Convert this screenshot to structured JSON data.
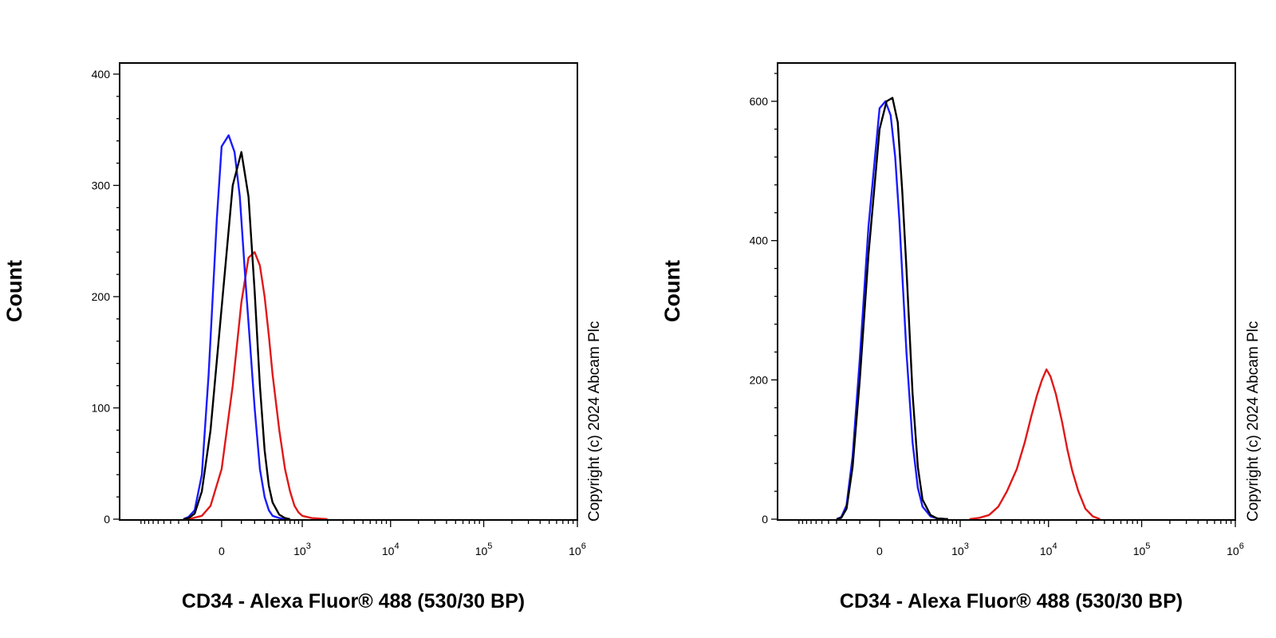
{
  "chart_data": [
    {
      "type": "line",
      "title": "",
      "xlabel": "CD34 - Alexa Fluor® 488 (530/30 BP)",
      "ylabel": "Count",
      "annotation": "Copyright (c) 2024 Abcam Plc",
      "xscale": "biexponential",
      "ylim": [
        0,
        410
      ],
      "grid": false,
      "yticks": [
        0,
        100,
        200,
        300,
        400
      ],
      "yticks_labels": [
        "0",
        "100",
        "200",
        "300",
        "400"
      ],
      "xticks": [
        {
          "value": 0,
          "base": "0",
          "exp": ""
        },
        {
          "value": 1000,
          "base": "10",
          "exp": "3"
        },
        {
          "value": 10000,
          "base": "10",
          "exp": "4"
        },
        {
          "value": 100000,
          "base": "10",
          "exp": "5"
        },
        {
          "value": 1000000,
          "base": "10",
          "exp": "6"
        }
      ],
      "colors": {
        "blue": "#1a1aff",
        "black": "#000000",
        "red": "#e01818"
      },
      "series": [
        {
          "color": "blue",
          "x": [
            -250,
            -200,
            -150,
            -100,
            -60,
            -20,
            0,
            30,
            60,
            90,
            130,
            160,
            200,
            250,
            300,
            350,
            400,
            500,
            600,
            700
          ],
          "y": [
            0,
            2,
            8,
            40,
            130,
            270,
            335,
            345,
            330,
            290,
            210,
            160,
            100,
            45,
            20,
            8,
            3,
            1,
            0,
            0
          ]
        },
        {
          "color": "black",
          "x": [
            -250,
            -200,
            -150,
            -100,
            -50,
            0,
            50,
            100,
            150,
            200,
            250,
            300,
            350,
            400,
            500,
            600,
            700
          ],
          "y": [
            0,
            1,
            5,
            25,
            80,
            190,
            300,
            330,
            290,
            205,
            120,
            62,
            30,
            15,
            4,
            1,
            0
          ]
        },
        {
          "color": "red",
          "x": [
            -200,
            -100,
            -50,
            0,
            50,
            100,
            150,
            200,
            250,
            300,
            350,
            400,
            500,
            600,
            700,
            800,
            900,
            1000,
            1300,
            2000
          ],
          "y": [
            0,
            3,
            12,
            45,
            120,
            195,
            235,
            240,
            228,
            200,
            165,
            130,
            80,
            45,
            25,
            12,
            6,
            3,
            1,
            0
          ]
        }
      ]
    },
    {
      "type": "line",
      "title": "",
      "xlabel": "CD34 - Alexa Fluor® 488 (530/30 BP)",
      "ylabel": "Count",
      "annotation": "Copyright (c) 2024 Abcam Plc",
      "xscale": "biexponential",
      "ylim": [
        0,
        655
      ],
      "grid": false,
      "yticks": [
        0,
        200,
        400,
        600
      ],
      "yticks_labels": [
        "0",
        "200",
        "400",
        "600"
      ],
      "xticks": [
        {
          "value": 0,
          "base": "0",
          "exp": ""
        },
        {
          "value": 1000,
          "base": "10",
          "exp": "3"
        },
        {
          "value": 10000,
          "base": "10",
          "exp": "4"
        },
        {
          "value": 100000,
          "base": "10",
          "exp": "5"
        },
        {
          "value": 1000000,
          "base": "10",
          "exp": "6"
        }
      ],
      "colors": {
        "blue": "#1a1aff",
        "black": "#000000",
        "red": "#e01818"
      },
      "series": [
        {
          "color": "blue",
          "x": [
            -300,
            -250,
            -200,
            -150,
            -100,
            -50,
            0,
            25,
            50,
            75,
            100,
            150,
            200,
            250,
            300,
            400,
            500,
            700
          ],
          "y": [
            0,
            3,
            20,
            90,
            230,
            420,
            590,
            600,
            580,
            520,
            430,
            240,
            110,
            45,
            18,
            4,
            1,
            0
          ]
        },
        {
          "color": "black",
          "x": [
            -300,
            -250,
            -200,
            -150,
            -100,
            -50,
            0,
            30,
            60,
            90,
            120,
            150,
            200,
            250,
            300,
            400,
            500,
            700
          ],
          "y": [
            0,
            2,
            15,
            75,
            200,
            380,
            560,
            600,
            605,
            570,
            470,
            360,
            180,
            75,
            28,
            6,
            1,
            0
          ]
        },
        {
          "color": "red",
          "x": [
            1300,
            1700,
            2200,
            2800,
            3500,
            4500,
            5500,
            6500,
            7500,
            8500,
            9500,
            10500,
            12000,
            14000,
            16000,
            18000,
            21000,
            25000,
            30000,
            36000
          ],
          "y": [
            0,
            2,
            6,
            18,
            40,
            72,
            110,
            148,
            178,
            200,
            215,
            205,
            180,
            140,
            100,
            70,
            40,
            15,
            4,
            0
          ]
        }
      ]
    }
  ]
}
